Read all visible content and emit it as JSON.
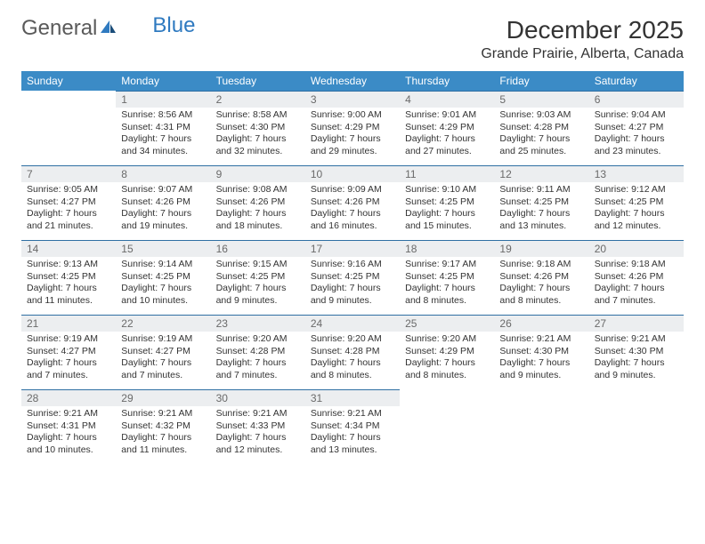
{
  "logo": {
    "word1": "General",
    "word2": "Blue"
  },
  "title": "December 2025",
  "location": "Grande Prairie, Alberta, Canada",
  "colors": {
    "header_bg": "#3b8bc6",
    "header_text": "#ffffff",
    "daynum_bg": "#eceef0",
    "daynum_border": "#2f6fa3",
    "daynum_text": "#6a6a6a",
    "body_text": "#333333",
    "logo_general": "#5a5a5a",
    "logo_blue": "#2f7ac0",
    "page_bg": "#ffffff"
  },
  "fonts": {
    "title_size_pt": 21,
    "location_size_pt": 12,
    "weekday_size_pt": 9,
    "daynum_size_pt": 9,
    "data_size_pt": 8
  },
  "weekdays": [
    "Sunday",
    "Monday",
    "Tuesday",
    "Wednesday",
    "Thursday",
    "Friday",
    "Saturday"
  ],
  "weeks": [
    [
      null,
      {
        "n": "1",
        "sr": "8:56 AM",
        "ss": "4:31 PM",
        "dl": "7 hours and 34 minutes."
      },
      {
        "n": "2",
        "sr": "8:58 AM",
        "ss": "4:30 PM",
        "dl": "7 hours and 32 minutes."
      },
      {
        "n": "3",
        "sr": "9:00 AM",
        "ss": "4:29 PM",
        "dl": "7 hours and 29 minutes."
      },
      {
        "n": "4",
        "sr": "9:01 AM",
        "ss": "4:29 PM",
        "dl": "7 hours and 27 minutes."
      },
      {
        "n": "5",
        "sr": "9:03 AM",
        "ss": "4:28 PM",
        "dl": "7 hours and 25 minutes."
      },
      {
        "n": "6",
        "sr": "9:04 AM",
        "ss": "4:27 PM",
        "dl": "7 hours and 23 minutes."
      }
    ],
    [
      {
        "n": "7",
        "sr": "9:05 AM",
        "ss": "4:27 PM",
        "dl": "7 hours and 21 minutes."
      },
      {
        "n": "8",
        "sr": "9:07 AM",
        "ss": "4:26 PM",
        "dl": "7 hours and 19 minutes."
      },
      {
        "n": "9",
        "sr": "9:08 AM",
        "ss": "4:26 PM",
        "dl": "7 hours and 18 minutes."
      },
      {
        "n": "10",
        "sr": "9:09 AM",
        "ss": "4:26 PM",
        "dl": "7 hours and 16 minutes."
      },
      {
        "n": "11",
        "sr": "9:10 AM",
        "ss": "4:25 PM",
        "dl": "7 hours and 15 minutes."
      },
      {
        "n": "12",
        "sr": "9:11 AM",
        "ss": "4:25 PM",
        "dl": "7 hours and 13 minutes."
      },
      {
        "n": "13",
        "sr": "9:12 AM",
        "ss": "4:25 PM",
        "dl": "7 hours and 12 minutes."
      }
    ],
    [
      {
        "n": "14",
        "sr": "9:13 AM",
        "ss": "4:25 PM",
        "dl": "7 hours and 11 minutes."
      },
      {
        "n": "15",
        "sr": "9:14 AM",
        "ss": "4:25 PM",
        "dl": "7 hours and 10 minutes."
      },
      {
        "n": "16",
        "sr": "9:15 AM",
        "ss": "4:25 PM",
        "dl": "7 hours and 9 minutes."
      },
      {
        "n": "17",
        "sr": "9:16 AM",
        "ss": "4:25 PM",
        "dl": "7 hours and 9 minutes."
      },
      {
        "n": "18",
        "sr": "9:17 AM",
        "ss": "4:25 PM",
        "dl": "7 hours and 8 minutes."
      },
      {
        "n": "19",
        "sr": "9:18 AM",
        "ss": "4:26 PM",
        "dl": "7 hours and 8 minutes."
      },
      {
        "n": "20",
        "sr": "9:18 AM",
        "ss": "4:26 PM",
        "dl": "7 hours and 7 minutes."
      }
    ],
    [
      {
        "n": "21",
        "sr": "9:19 AM",
        "ss": "4:27 PM",
        "dl": "7 hours and 7 minutes."
      },
      {
        "n": "22",
        "sr": "9:19 AM",
        "ss": "4:27 PM",
        "dl": "7 hours and 7 minutes."
      },
      {
        "n": "23",
        "sr": "9:20 AM",
        "ss": "4:28 PM",
        "dl": "7 hours and 7 minutes."
      },
      {
        "n": "24",
        "sr": "9:20 AM",
        "ss": "4:28 PM",
        "dl": "7 hours and 8 minutes."
      },
      {
        "n": "25",
        "sr": "9:20 AM",
        "ss": "4:29 PM",
        "dl": "7 hours and 8 minutes."
      },
      {
        "n": "26",
        "sr": "9:21 AM",
        "ss": "4:30 PM",
        "dl": "7 hours and 9 minutes."
      },
      {
        "n": "27",
        "sr": "9:21 AM",
        "ss": "4:30 PM",
        "dl": "7 hours and 9 minutes."
      }
    ],
    [
      {
        "n": "28",
        "sr": "9:21 AM",
        "ss": "4:31 PM",
        "dl": "7 hours and 10 minutes."
      },
      {
        "n": "29",
        "sr": "9:21 AM",
        "ss": "4:32 PM",
        "dl": "7 hours and 11 minutes."
      },
      {
        "n": "30",
        "sr": "9:21 AM",
        "ss": "4:33 PM",
        "dl": "7 hours and 12 minutes."
      },
      {
        "n": "31",
        "sr": "9:21 AM",
        "ss": "4:34 PM",
        "dl": "7 hours and 13 minutes."
      },
      null,
      null,
      null
    ]
  ],
  "labels": {
    "sunrise": "Sunrise: ",
    "sunset": "Sunset: ",
    "daylight": "Daylight: "
  }
}
